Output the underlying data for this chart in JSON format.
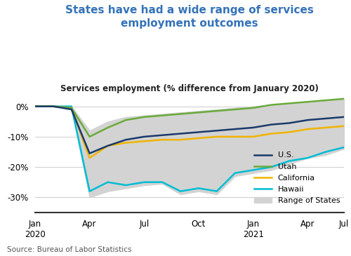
{
  "title": "States have had a wide range of services\nemployment outcomes",
  "subtitle": "Services employment (% difference from January 2020)",
  "source": "Source: Bureau of Labor Statistics",
  "title_color": "#3573b9",
  "subtitle_color": "#222222",
  "background_color": "#ffffff",
  "xlim": [
    0,
    17
  ],
  "ylim": [
    -35,
    3
  ],
  "yticks": [
    0,
    -10,
    -20,
    -30
  ],
  "ytick_labels": [
    "0%",
    "-10%",
    "-20%",
    "-30%"
  ],
  "xtick_positions": [
    0,
    3,
    6,
    9,
    12,
    15,
    17
  ],
  "xtick_labels": [
    "Jan\n2020",
    "Apr",
    "Jul",
    "Oct",
    "Jan\n2021",
    "Apr",
    "Jul"
  ],
  "us_color": "#1a3a6b",
  "utah_color": "#6aaa3a",
  "california_color": "#f0b400",
  "hawaii_color": "#00bcd4",
  "range_color": "#d3d3d3",
  "us_data": [
    0,
    0,
    -1,
    -15.5,
    -13,
    -11,
    -10,
    -9.5,
    -9,
    -8.5,
    -8,
    -7.5,
    -7,
    -6,
    -5.5,
    -4.5,
    -4,
    -3.5
  ],
  "utah_data": [
    0,
    0,
    -0.5,
    -10,
    -7,
    -4.5,
    -3.5,
    -3,
    -2.5,
    -2,
    -1.5,
    -1,
    -0.5,
    0.5,
    1,
    1.5,
    2,
    2.5
  ],
  "california_data": [
    0,
    0,
    -0.5,
    -17,
    -13,
    -12,
    -11.5,
    -11,
    -11,
    -10.5,
    -10,
    -10,
    -10,
    -9,
    -8.5,
    -7.5,
    -7,
    -6.5
  ],
  "hawaii_data": [
    0,
    0,
    0,
    -28,
    -25,
    -26,
    -25,
    -25,
    -28,
    -27,
    -28,
    -22,
    -21,
    -20,
    -18,
    -17,
    -15,
    -13.5
  ],
  "range_upper": [
    0,
    0,
    0,
    -8,
    -5,
    -3.5,
    -3,
    -2.5,
    -2,
    -1.5,
    -1,
    -0.5,
    0,
    0.5,
    1,
    1.5,
    2,
    2.5
  ],
  "range_lower": [
    0,
    0,
    -0.5,
    -30,
    -28,
    -27,
    -26,
    -25.5,
    -29,
    -28,
    -29,
    -23,
    -22,
    -21,
    -19,
    -17,
    -16,
    -14
  ]
}
